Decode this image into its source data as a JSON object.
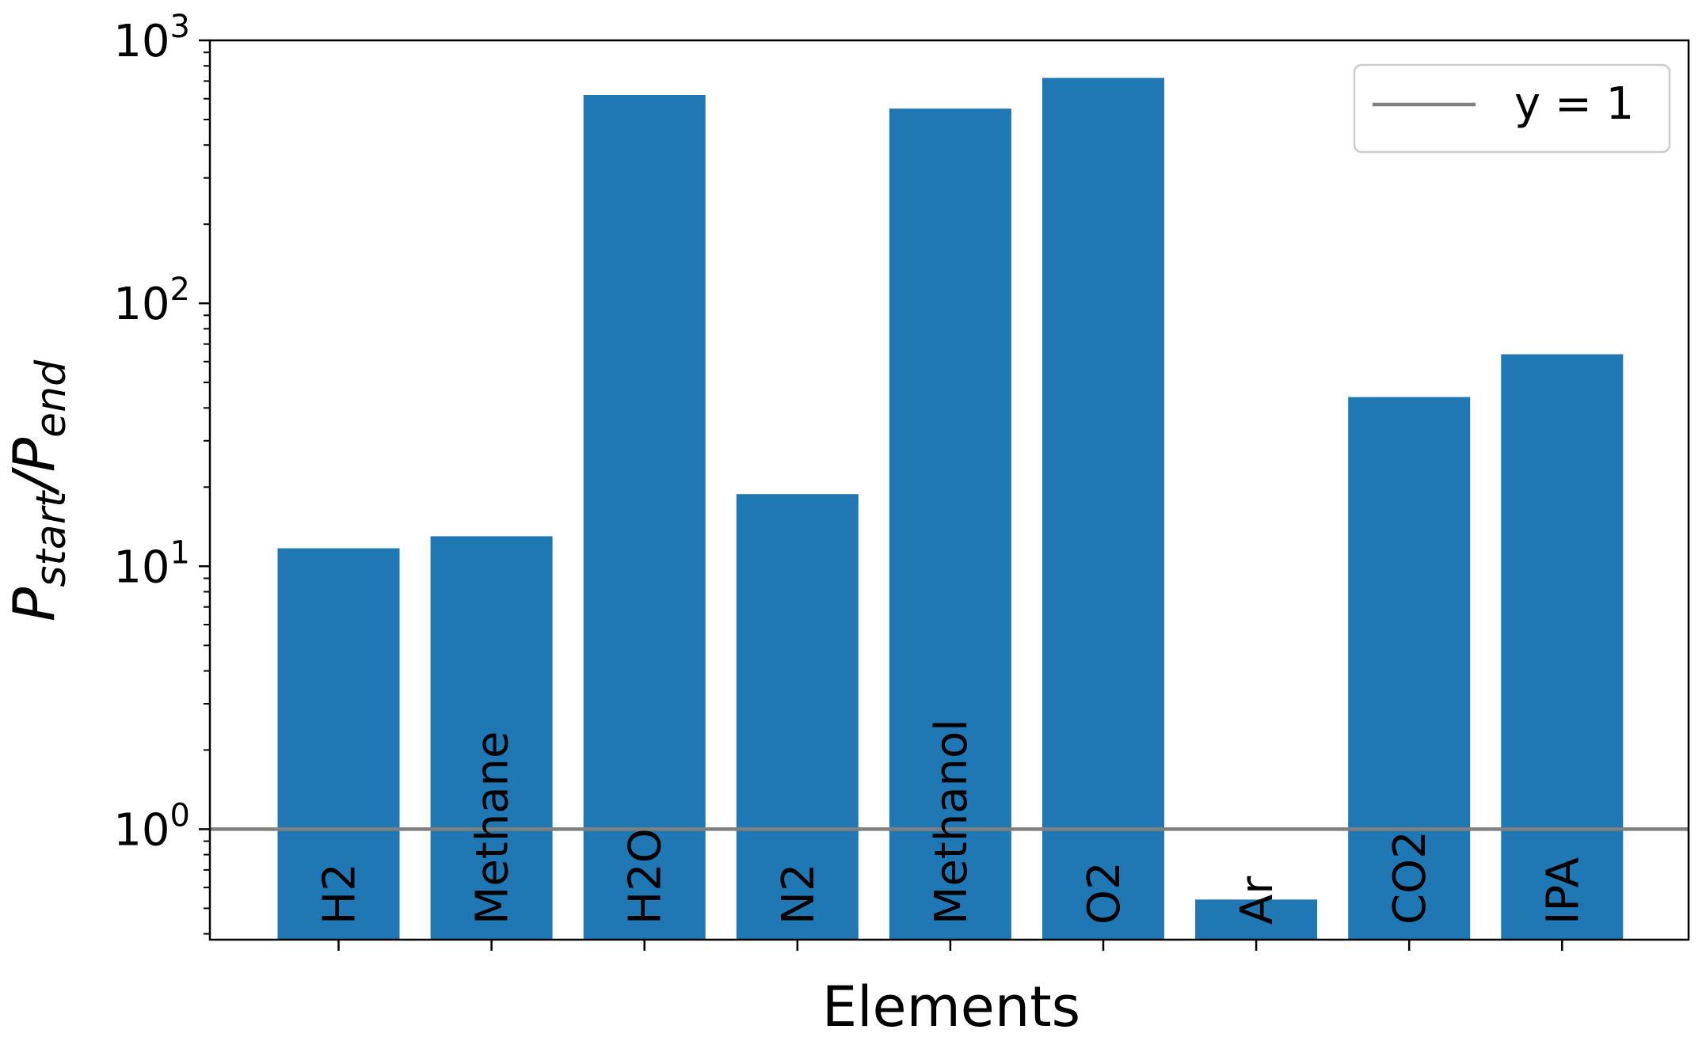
{
  "chart_data": {
    "type": "bar",
    "categories": [
      "H2",
      "Methane",
      "H2O",
      "N2",
      "Methanol",
      "O2",
      "Ar",
      "CO2",
      "IPA"
    ],
    "values": [
      11.7,
      13.0,
      620,
      18.8,
      550,
      720,
      0.54,
      44,
      64
    ],
    "bar_color": "#1f77b4",
    "xlabel": "Elements",
    "ylabel": {
      "main": "P",
      "start_sub": "start",
      "slash": "/",
      "end_main": "P",
      "end_sub": "end"
    },
    "yscale": "log",
    "ylim": [
      0.38,
      1000
    ],
    "yticks": [
      {
        "value": 1,
        "base": "10",
        "exp": "0"
      },
      {
        "value": 10,
        "base": "10",
        "exp": "1"
      },
      {
        "value": 100,
        "base": "10",
        "exp": "2"
      },
      {
        "value": 1000,
        "base": "10",
        "exp": "3"
      }
    ],
    "hline": {
      "y": 1,
      "color": "#808080",
      "label": "y = 1"
    },
    "legend": {
      "placement": "top-right",
      "entries": [
        "y = 1"
      ]
    },
    "grid": false
  }
}
